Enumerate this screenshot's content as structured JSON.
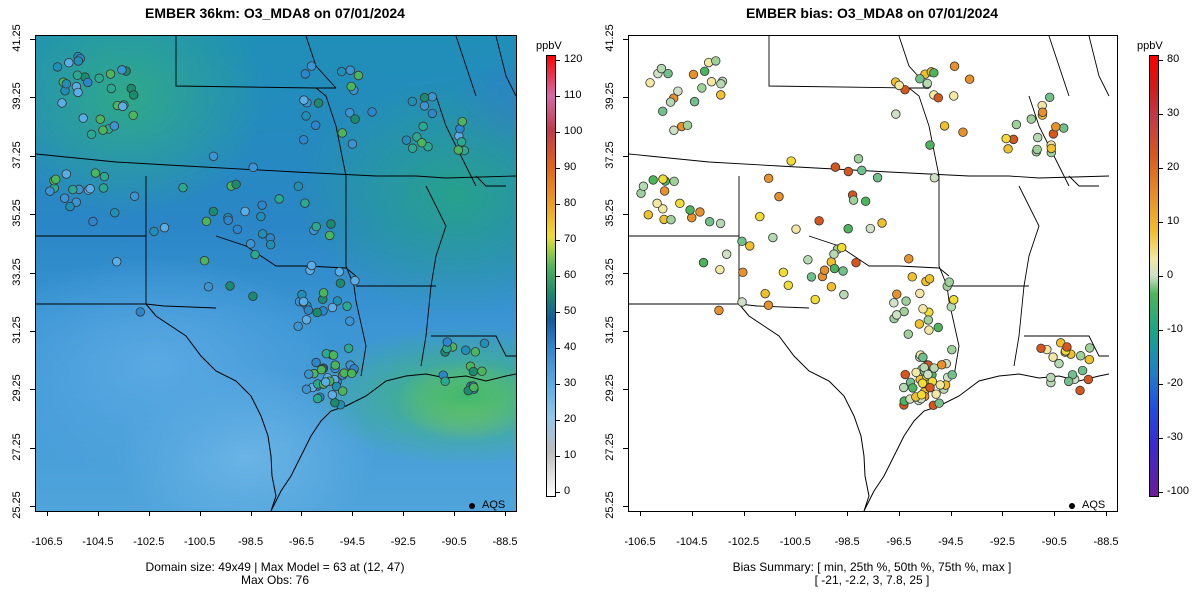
{
  "left_panel": {
    "title": "EMBER 36km: O3_MDA8 on 07/01/2024",
    "footer_line1": "Domain size: 49x49 | Max Model = 63 at (12, 47)",
    "footer_line2": "Max Obs: 76",
    "colorbar_unit": "ppbV",
    "colorbar_ticks": [
      "0",
      "10",
      "20",
      "30",
      "40",
      "50",
      "60",
      "70",
      "80",
      "90",
      "100",
      "110",
      "120"
    ]
  },
  "right_panel": {
    "title": "EMBER bias: O3_MDA8 on 07/01/2024",
    "footer_line1": "Bias Summary: [ min, 25th %, 50th %, 75th %, max ]",
    "footer_line2": "[ -21,   -2.2,   3,   7.8,   25 ]",
    "colorbar_unit": "ppbV",
    "colorbar_ticks": [
      "-100",
      "-30",
      "-20",
      "-10",
      "0",
      "10",
      "20",
      "30",
      "80"
    ]
  },
  "axes": {
    "x_ticks": [
      "-106.5",
      "-104.5",
      "-102.5",
      "-100.5",
      "-98.5",
      "-96.5",
      "-94.5",
      "-92.5",
      "-90.5",
      "-88.5"
    ],
    "y_ticks": [
      "41.25",
      "39.25",
      "37.25",
      "35.25",
      "33.25",
      "31.25",
      "29.25",
      "27.25",
      "25.25"
    ]
  },
  "legend": {
    "label": "AQS"
  },
  "colors": {
    "border": "#000000",
    "obs_outline": "#333333"
  }
}
